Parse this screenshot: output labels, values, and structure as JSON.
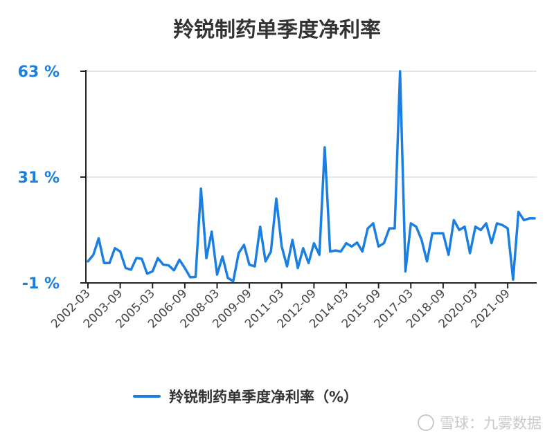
{
  "colors": {
    "series": "#1a7fe0",
    "axis": "#222222",
    "grid": "#dddddd",
    "ytick": "#1a7fe0"
  },
  "watermark": {
    "text": "雪球：九雾数据",
    "icon": "snowball-logo-icon"
  },
  "chart_data": {
    "type": "line",
    "title": "羚锐制药单季度净利率",
    "xlabel": "",
    "ylabel": "",
    "ylim": [
      -1,
      63
    ],
    "yticks": [
      {
        "value": 63,
        "label": "63 %"
      },
      {
        "value": 31,
        "label": "31 %"
      },
      {
        "value": -1,
        "label": "-1 %"
      }
    ],
    "grid": true,
    "legend": {
      "position": "bottom-center"
    },
    "xtick_labels": [
      "2002-03",
      "2003-09",
      "2005-03",
      "2006-09",
      "2008-03",
      "2009-09",
      "2011-03",
      "2012-09",
      "2014-03",
      "2015-09",
      "2017-03",
      "2018-09",
      "2020-03",
      "2021-09"
    ],
    "series": [
      {
        "name": "羚锐制药单季度净利率（%）",
        "x": [
          "2002-03",
          "2002-06",
          "2002-09",
          "2002-12",
          "2003-03",
          "2003-06",
          "2003-09",
          "2003-12",
          "2004-03",
          "2004-06",
          "2004-09",
          "2004-12",
          "2005-03",
          "2005-06",
          "2005-09",
          "2005-12",
          "2006-03",
          "2006-06",
          "2006-09",
          "2006-12",
          "2007-03",
          "2007-06",
          "2007-09",
          "2007-12",
          "2008-03",
          "2008-06",
          "2008-09",
          "2008-12",
          "2009-03",
          "2009-06",
          "2009-09",
          "2009-12",
          "2010-03",
          "2010-06",
          "2010-09",
          "2010-12",
          "2011-03",
          "2011-06",
          "2011-09",
          "2011-12",
          "2012-03",
          "2012-06",
          "2012-09",
          "2012-12",
          "2013-03",
          "2013-06",
          "2013-09",
          "2013-12",
          "2014-03",
          "2014-06",
          "2014-09",
          "2014-12",
          "2015-03",
          "2015-06",
          "2015-09",
          "2015-12",
          "2016-03",
          "2016-06",
          "2016-09",
          "2016-12",
          "2017-03",
          "2017-06",
          "2017-09",
          "2017-12",
          "2018-03",
          "2018-06",
          "2018-09",
          "2018-12",
          "2019-03",
          "2019-06",
          "2019-09",
          "2019-12",
          "2020-03",
          "2020-06",
          "2020-09",
          "2020-12",
          "2021-03",
          "2021-06",
          "2021-09",
          "2021-12",
          "2022-03",
          "2022-06",
          "2022-09",
          "2022-12"
        ],
        "values": [
          5.5,
          7.5,
          12.5,
          5,
          5,
          9.5,
          8.5,
          3.5,
          3,
          6.5,
          6.3,
          1.8,
          2.5,
          6.5,
          4.5,
          4.3,
          2.8,
          6,
          3.5,
          0.7,
          0.8,
          27.5,
          6.5,
          14.5,
          1.5,
          7,
          0.5,
          -0.5,
          8,
          10.5,
          4.5,
          4,
          16,
          5.5,
          8.5,
          24.5,
          10,
          4,
          12,
          3.5,
          9.5,
          5,
          11,
          7.5,
          40,
          8.5,
          8.8,
          8.5,
          11,
          10,
          11.2,
          8.5,
          15.5,
          17,
          10,
          11,
          15.5,
          15.5,
          63,
          2.5,
          17,
          16,
          12,
          5.5,
          14,
          14,
          14,
          7.5,
          18,
          15,
          16,
          8,
          16,
          15,
          17,
          11,
          17,
          16.5,
          15.5,
          0,
          20.5,
          18,
          18.5,
          18.5
        ]
      }
    ]
  }
}
